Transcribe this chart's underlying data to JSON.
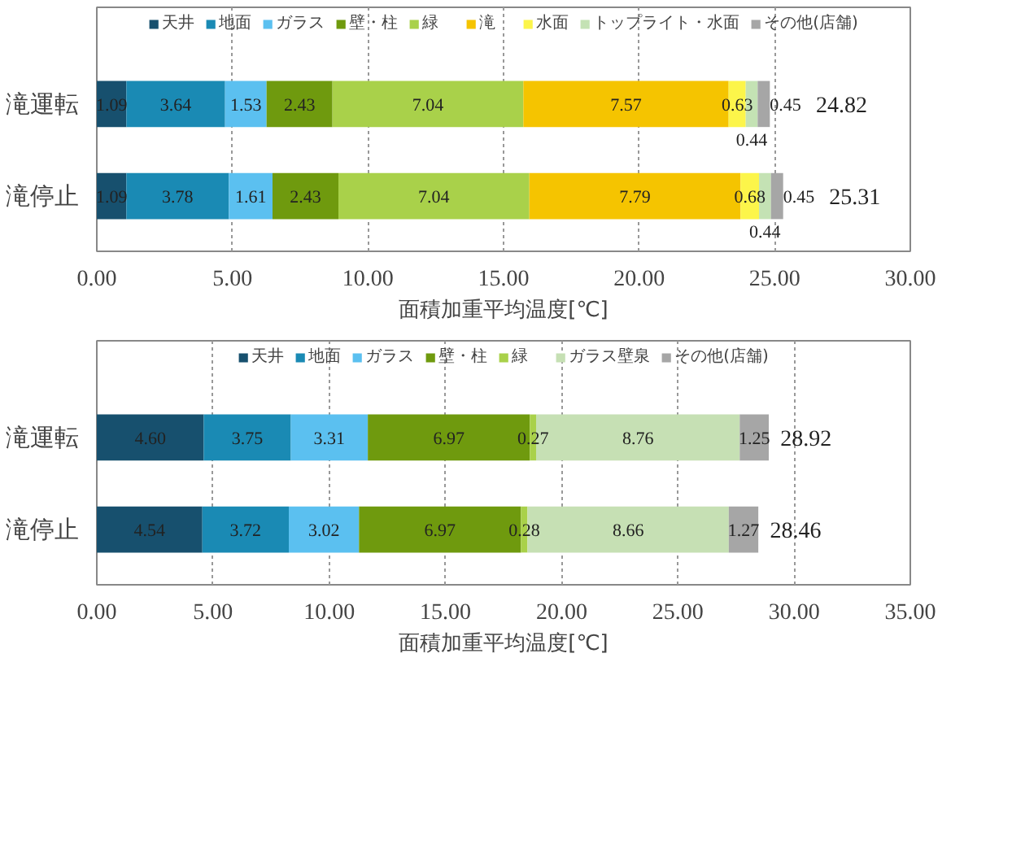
{
  "chart_data": [
    {
      "type": "bar",
      "orientation": "horizontal",
      "stacked": true,
      "categories": [
        "滝運転",
        "滝停止"
      ],
      "xlabel": "面積加重平均温度[℃]",
      "legend": "top",
      "grid": "x",
      "xlim": [
        0,
        30
      ],
      "xticks": [
        {
          "value": 0,
          "label": "0.00"
        },
        {
          "value": 5,
          "label": "5.00"
        },
        {
          "value": 10,
          "label": "10.00"
        },
        {
          "value": 15,
          "label": "15.00"
        },
        {
          "value": 20,
          "label": "20.00"
        },
        {
          "value": 25,
          "label": "25.00"
        },
        {
          "value": 30,
          "label": "30.00"
        }
      ],
      "series": [
        {
          "name": "天井",
          "color": "#17506e",
          "values": [
            1.09,
            1.09
          ],
          "value_labels": [
            "1.09",
            "1.09"
          ]
        },
        {
          "name": "地面",
          "color": "#1a8ab4",
          "values": [
            3.64,
            3.78
          ],
          "value_labels": [
            "3.64",
            "3.78"
          ]
        },
        {
          "name": "ガラス",
          "color": "#5bc0f0",
          "values": [
            1.53,
            1.61
          ],
          "value_labels": [
            "1.53",
            "1.61"
          ]
        },
        {
          "name": "壁・柱",
          "color": "#6f9a0e",
          "values": [
            2.43,
            2.43
          ],
          "value_labels": [
            "2.43",
            "2.43"
          ]
        },
        {
          "name": "緑",
          "color": "#a9d14a",
          "values": [
            7.04,
            7.04
          ],
          "value_labels": [
            "7.04",
            "7.04"
          ]
        },
        {
          "name": "滝",
          "color": "#f5c400",
          "values": [
            7.57,
            7.79
          ],
          "value_labels": [
            "7.57",
            "7.79"
          ]
        },
        {
          "name": "水面",
          "color": "#fcf54a",
          "values": [
            0.63,
            0.68
          ],
          "value_labels": [
            "0.63",
            "0.68"
          ]
        },
        {
          "name": "トップライト・水面",
          "color": "#c4e2b4",
          "values": [
            0.44,
            0.44
          ],
          "value_labels": [
            "0.44",
            "0.44"
          ]
        },
        {
          "name": "その他(店舗)",
          "color": "#a6a6a6",
          "values": [
            0.45,
            0.45
          ],
          "value_labels": [
            "0.45",
            "0.45"
          ]
        }
      ],
      "totals": [
        "24.82",
        "25.31"
      ]
    },
    {
      "type": "bar",
      "orientation": "horizontal",
      "stacked": true,
      "categories": [
        "滝運転",
        "滝停止"
      ],
      "xlabel": "面積加重平均温度[℃]",
      "legend": "top",
      "grid": "x",
      "xlim": [
        0,
        35
      ],
      "xticks": [
        {
          "value": 0,
          "label": "0.00"
        },
        {
          "value": 5,
          "label": "5.00"
        },
        {
          "value": 10,
          "label": "10.00"
        },
        {
          "value": 15,
          "label": "15.00"
        },
        {
          "value": 20,
          "label": "20.00"
        },
        {
          "value": 25,
          "label": "25.00"
        },
        {
          "value": 30,
          "label": "30.00"
        },
        {
          "value": 35,
          "label": "35.00"
        }
      ],
      "series": [
        {
          "name": "天井",
          "color": "#17506e",
          "values": [
            4.6,
            4.54
          ],
          "value_labels": [
            "4.60",
            "4.54"
          ]
        },
        {
          "name": "地面",
          "color": "#1a8ab4",
          "values": [
            3.75,
            3.72
          ],
          "value_labels": [
            "3.75",
            "3.72"
          ]
        },
        {
          "name": "ガラス",
          "color": "#5bc0f0",
          "values": [
            3.31,
            3.02
          ],
          "value_labels": [
            "3.31",
            "3.02"
          ]
        },
        {
          "name": "壁・柱",
          "color": "#6f9a0e",
          "values": [
            6.97,
            6.97
          ],
          "value_labels": [
            "6.97",
            "6.97"
          ]
        },
        {
          "name": "緑",
          "color": "#a9d14a",
          "values": [
            0.27,
            0.28
          ],
          "value_labels": [
            "0.27",
            "0.28"
          ]
        },
        {
          "name": "ガラス壁泉",
          "color": "#c6e0b4",
          "values": [
            8.76,
            8.66
          ],
          "value_labels": [
            "8.76",
            "8.66"
          ]
        },
        {
          "name": "その他(店舗)",
          "color": "#a6a6a6",
          "values": [
            1.25,
            1.27
          ],
          "value_labels": [
            "1.25",
            "1.27"
          ]
        }
      ],
      "totals": [
        "28.92",
        "28.46"
      ]
    }
  ]
}
